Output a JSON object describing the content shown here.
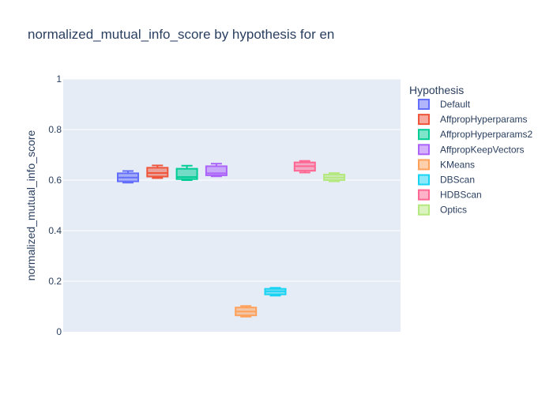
{
  "chart_data": {
    "type": "box",
    "title": "normalized_mutual_info_score by hypothesis for en",
    "xlabel": "",
    "ylabel": "normalized_mutual_info_score",
    "ylim": [
      0,
      1
    ],
    "yticks": [
      "0",
      "0.2",
      "0.4",
      "0.6",
      "0.8",
      "1"
    ],
    "ytick_values": [
      0,
      0.2,
      0.4,
      0.6,
      0.8,
      1
    ],
    "grid": true,
    "legend_title": "Hypothesis",
    "legend_position": "right",
    "series": [
      {
        "name": "Default",
        "color": "#636efa",
        "min": 0.59,
        "q1": 0.595,
        "median": 0.61,
        "q3": 0.627,
        "max": 0.636
      },
      {
        "name": "AffpropHyperparams",
        "color": "#EF553B",
        "min": 0.608,
        "q1": 0.614,
        "median": 0.628,
        "q3": 0.649,
        "max": 0.658
      },
      {
        "name": "AffpropHyperparams2",
        "color": "#00cc96",
        "min": 0.6,
        "q1": 0.604,
        "median": 0.612,
        "q3": 0.645,
        "max": 0.657
      },
      {
        "name": "AffpropKeepVectors",
        "color": "#ab63fa",
        "min": 0.615,
        "q1": 0.619,
        "median": 0.627,
        "q3": 0.655,
        "max": 0.665
      },
      {
        "name": "KMeans",
        "color": "#FFA15A",
        "min": 0.06,
        "q1": 0.065,
        "median": 0.08,
        "q3": 0.096,
        "max": 0.102
      },
      {
        "name": "DBScan",
        "color": "#19d3f3",
        "min": 0.143,
        "q1": 0.148,
        "median": 0.16,
        "q3": 0.17,
        "max": 0.174
      },
      {
        "name": "HDBScan",
        "color": "#FF6692",
        "min": 0.63,
        "q1": 0.637,
        "median": 0.655,
        "q3": 0.67,
        "max": 0.676
      },
      {
        "name": "Optics",
        "color": "#B6E880",
        "min": 0.595,
        "q1": 0.6,
        "median": 0.61,
        "q3": 0.622,
        "max": 0.628
      }
    ]
  }
}
